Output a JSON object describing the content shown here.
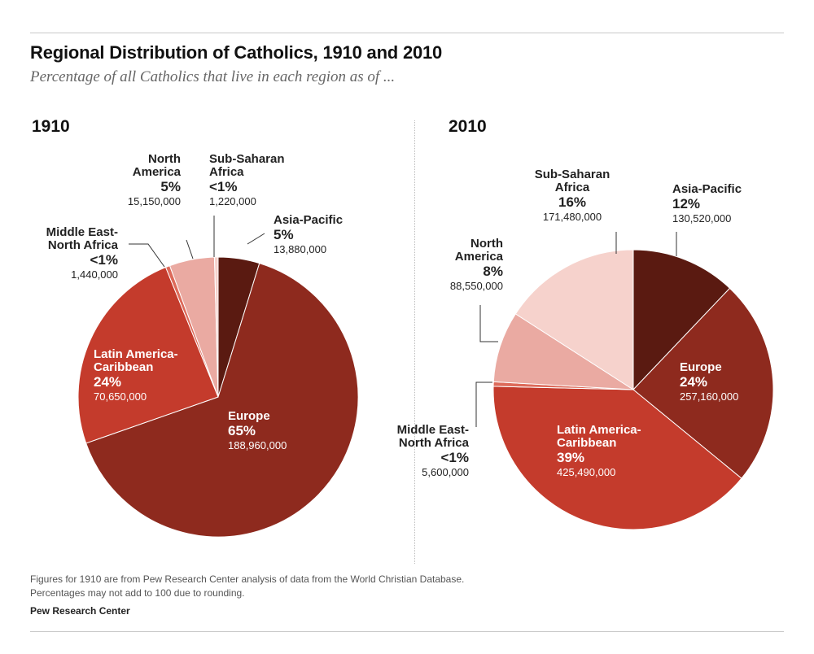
{
  "title": "Regional Distribution of Catholics, 1910 and 2010",
  "subtitle": "Percentage of all Catholics that live in each region as of ...",
  "footnotes": [
    "Figures for 1910 are from Pew Research Center analysis of data from the World Christian Database.",
    "Percentages may not add to 100 due to rounding."
  ],
  "source": "Pew Research Center",
  "colors": {
    "asia_pacific": "#5a1a11",
    "europe": "#8e2a1e",
    "latin_america": "#c43b2c",
    "mena": "#dd6a5a",
    "north_america": "#eaaaa2",
    "sub_saharan": "#f6d2cc"
  },
  "chart_data": [
    {
      "type": "pie",
      "title": "1910",
      "slices": [
        {
          "key": "asia_pacific",
          "label": "Asia-Pacific",
          "percent_label": "5%",
          "count_label": "13,880,000",
          "value": 13880000
        },
        {
          "key": "europe",
          "label": "Europe",
          "percent_label": "65%",
          "count_label": "188,960,000",
          "value": 188960000
        },
        {
          "key": "latin_america",
          "label": "Latin America-Caribbean",
          "percent_label": "24%",
          "count_label": "70,650,000",
          "value": 70650000
        },
        {
          "key": "mena",
          "label": "Middle East-North Africa",
          "percent_label": "<1%",
          "count_label": "1,440,000",
          "value": 1440000
        },
        {
          "key": "north_america",
          "label": "North America",
          "percent_label": "5%",
          "count_label": "15,150,000",
          "value": 15150000
        },
        {
          "key": "sub_saharan",
          "label": "Sub-Saharan Africa",
          "percent_label": "<1%",
          "count_label": "1,220,000",
          "value": 1220000
        }
      ]
    },
    {
      "type": "pie",
      "title": "2010",
      "slices": [
        {
          "key": "asia_pacific",
          "label": "Asia-Pacific",
          "percent_label": "12%",
          "count_label": "130,520,000",
          "value": 130520000
        },
        {
          "key": "europe",
          "label": "Europe",
          "percent_label": "24%",
          "count_label": "257,160,000",
          "value": 257160000
        },
        {
          "key": "latin_america",
          "label": "Latin America-Caribbean",
          "percent_label": "39%",
          "count_label": "425,490,000",
          "value": 425490000
        },
        {
          "key": "mena",
          "label": "Middle East-North Africa",
          "percent_label": "<1%",
          "count_label": "5,600,000",
          "value": 5600000
        },
        {
          "key": "north_america",
          "label": "North America",
          "percent_label": "8%",
          "count_label": "88,550,000",
          "value": 88550000
        },
        {
          "key": "sub_saharan",
          "label": "Sub-Saharan Africa",
          "percent_label": "16%",
          "count_label": "171,480,000",
          "value": 171480000
        }
      ]
    }
  ]
}
